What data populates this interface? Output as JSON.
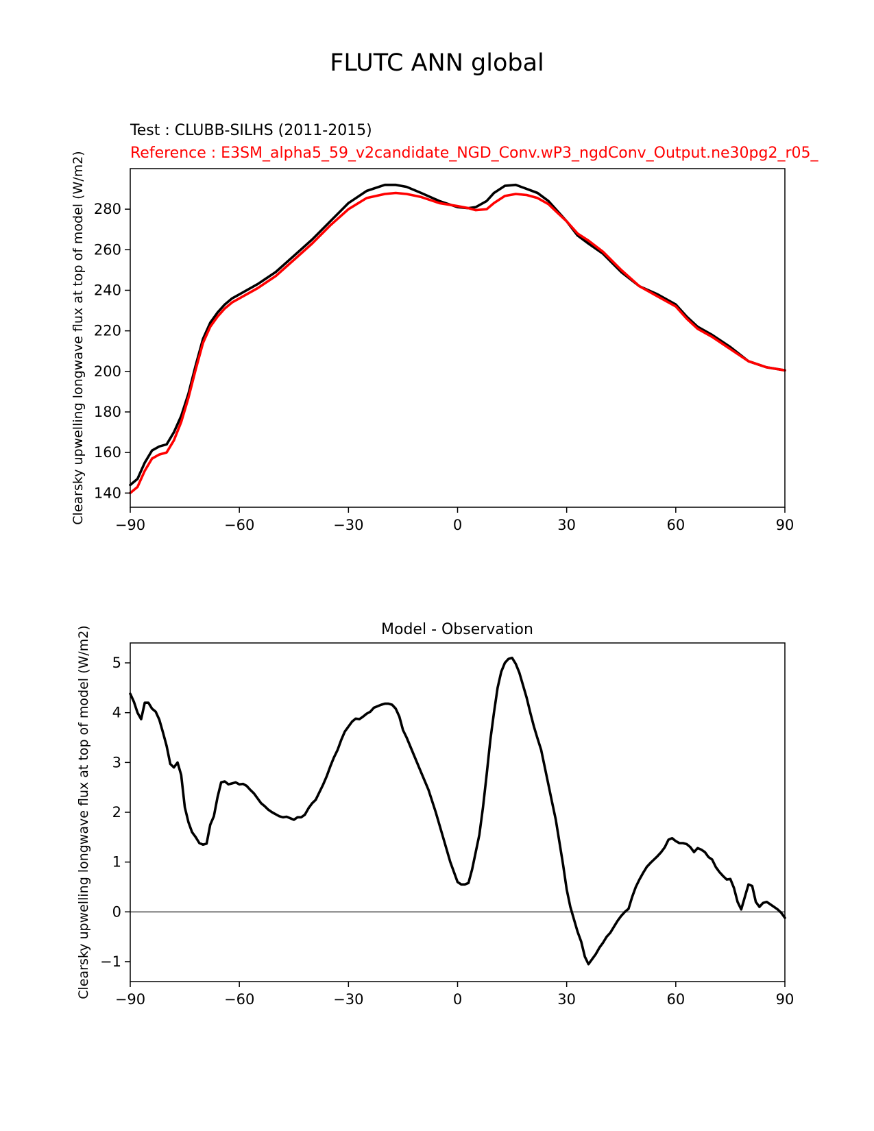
{
  "figure": {
    "suptitle": "FLUTC ANN global",
    "test_label": "Test : CLUBB-SILHS (2011-2015)",
    "reference_label": "Reference : E3SM_alpha5_59_v2candidate_NGD_Conv.wP3_ngdConv_Output.ne30pg2_r05_"
  },
  "colors": {
    "test": "#000000",
    "reference": "#ff0000",
    "zero_line": "#808080"
  },
  "chart_data": [
    {
      "type": "line",
      "title": "",
      "xlabel": "",
      "ylabel": "Clearsky upwelling longwave flux at top of model (W/m2)",
      "xlim": [
        -90,
        90
      ],
      "ylim": [
        133,
        300
      ],
      "xticks": [
        -90,
        -60,
        -30,
        0,
        30,
        60,
        90
      ],
      "xtick_labels": [
        "−90",
        "−60",
        "−30",
        "0",
        "30",
        "60",
        "90"
      ],
      "yticks": [
        140,
        160,
        180,
        200,
        220,
        240,
        260,
        280
      ],
      "ytick_labels": [
        "140",
        "160",
        "180",
        "200",
        "220",
        "240",
        "260",
        "280"
      ],
      "series": [
        {
          "name": "Test : CLUBB-SILHS (2011-2015)",
          "color": "#000000",
          "x": [
            -90,
            -88,
            -86,
            -84,
            -82,
            -80,
            -78,
            -76,
            -74,
            -72,
            -70,
            -68,
            -66,
            -64,
            -62,
            -60,
            -55,
            -50,
            -45,
            -40,
            -35,
            -30,
            -25,
            -20,
            -17,
            -14,
            -10,
            -5,
            0,
            3,
            5,
            8,
            10,
            13,
            16,
            19,
            22,
            25,
            27,
            30,
            33,
            36,
            40,
            45,
            50,
            55,
            60,
            63,
            66,
            70,
            75,
            80,
            85,
            90
          ],
          "values": [
            144,
            147,
            155,
            161,
            163,
            164,
            170,
            178,
            189,
            203,
            216,
            224,
            229,
            233,
            236,
            238,
            243,
            249,
            257,
            265,
            274,
            283,
            289,
            292,
            292,
            291,
            288,
            284,
            281,
            280.5,
            281,
            284,
            288,
            291.5,
            292,
            290,
            288,
            284,
            280,
            274,
            267,
            263,
            258,
            249,
            242,
            238,
            233,
            227,
            222,
            218,
            212,
            205,
            202,
            200.5
          ]
        },
        {
          "name": "Reference : E3SM_alpha5_59_v2candidate_NGD_Conv.wP3_ngdConv_Output.ne30pg2_r05_",
          "color": "#ff0000",
          "x": [
            -90,
            -88,
            -86,
            -84,
            -82,
            -80,
            -78,
            -76,
            -74,
            -72,
            -70,
            -68,
            -66,
            -64,
            -62,
            -60,
            -55,
            -50,
            -45,
            -40,
            -35,
            -30,
            -25,
            -20,
            -17,
            -14,
            -10,
            -5,
            0,
            3,
            5,
            8,
            10,
            13,
            16,
            19,
            22,
            25,
            27,
            30,
            33,
            36,
            40,
            45,
            50,
            55,
            60,
            63,
            66,
            70,
            75,
            80,
            85,
            90
          ],
          "values": [
            140,
            143,
            151,
            157,
            159,
            160,
            166,
            175,
            187,
            201,
            214,
            222,
            227,
            231,
            234,
            236,
            241,
            247,
            255,
            263,
            272,
            280,
            285.5,
            287.5,
            288,
            287.5,
            286,
            283,
            281.5,
            280.5,
            279.5,
            280,
            283,
            286.5,
            287.5,
            287,
            285.5,
            282.5,
            279,
            274,
            268,
            264.5,
            259,
            250,
            242,
            237,
            232,
            226,
            221,
            217,
            211,
            205,
            202,
            200.5
          ]
        }
      ]
    },
    {
      "type": "line",
      "title": "Model - Observation",
      "xlabel": "",
      "ylabel": "Clearsky upwelling longwave flux at top of model (W/m2)",
      "xlim": [
        -90,
        90
      ],
      "ylim": [
        -1.4,
        5.4
      ],
      "xticks": [
        -90,
        -60,
        -30,
        0,
        30,
        60,
        90
      ],
      "xtick_labels": [
        "−90",
        "−60",
        "−30",
        "0",
        "30",
        "60",
        "90"
      ],
      "yticks": [
        -1,
        0,
        1,
        2,
        3,
        4,
        5
      ],
      "ytick_labels": [
        "−1",
        "0",
        "1",
        "2",
        "3",
        "4",
        "5"
      ],
      "reference_line": {
        "y": 0,
        "color": "#808080"
      },
      "series": [
        {
          "name": "Model - Observation",
          "color": "#000000",
          "x": [
            -90,
            -89,
            -88,
            -87,
            -86,
            -85,
            -84,
            -83,
            -82,
            -81,
            -80,
            -79,
            -78,
            -77,
            -76,
            -75,
            -74,
            -73,
            -72,
            -71,
            -70,
            -69,
            -68,
            -67,
            -66,
            -65,
            -64,
            -63,
            -62,
            -61,
            -60,
            -59,
            -58,
            -57,
            -56,
            -55,
            -54,
            -53,
            -52,
            -51,
            -50,
            -49,
            -48,
            -47,
            -46,
            -45,
            -44,
            -43,
            -42,
            -41,
            -40,
            -39,
            -38,
            -37,
            -36,
            -35,
            -34,
            -33,
            -32,
            -31,
            -30,
            -29,
            -28,
            -27,
            -26,
            -25,
            -24,
            -23,
            -22,
            -21,
            -20,
            -19,
            -18,
            -17,
            -16,
            -15,
            -14,
            -12,
            -10,
            -8,
            -6,
            -4,
            -2,
            0,
            1,
            2,
            3,
            4,
            5,
            6,
            7,
            8,
            9,
            10,
            11,
            12,
            13,
            14,
            15,
            16,
            17,
            18,
            19,
            20,
            21,
            22,
            23,
            24,
            25,
            26,
            27,
            28,
            29,
            30,
            31,
            32,
            33,
            34,
            35,
            36,
            37,
            38,
            39,
            40,
            41,
            42,
            43,
            44,
            45,
            46,
            47,
            48,
            49,
            50,
            51,
            52,
            53,
            54,
            55,
            56,
            57,
            58,
            59,
            60,
            61,
            62,
            63,
            64,
            65,
            66,
            67,
            68,
            69,
            70,
            71,
            72,
            73,
            74,
            75,
            76,
            77,
            78,
            79,
            80,
            81,
            82,
            83,
            84,
            85,
            86,
            87,
            88,
            89,
            90
          ],
          "values": [
            4.38,
            4.22,
            4.0,
            3.87,
            4.2,
            4.2,
            4.08,
            4.02,
            3.86,
            3.6,
            3.33,
            2.97,
            2.9,
            3.0,
            2.75,
            2.1,
            1.8,
            1.6,
            1.5,
            1.38,
            1.35,
            1.37,
            1.75,
            1.92,
            2.3,
            2.6,
            2.62,
            2.56,
            2.58,
            2.6,
            2.56,
            2.57,
            2.53,
            2.45,
            2.38,
            2.28,
            2.18,
            2.12,
            2.05,
            2.0,
            1.96,
            1.92,
            1.9,
            1.91,
            1.88,
            1.85,
            1.9,
            1.9,
            1.95,
            2.08,
            2.18,
            2.25,
            2.4,
            2.55,
            2.72,
            2.92,
            3.1,
            3.25,
            3.45,
            3.62,
            3.72,
            3.82,
            3.88,
            3.87,
            3.92,
            3.98,
            4.02,
            4.1,
            4.13,
            4.16,
            4.18,
            4.18,
            4.16,
            4.08,
            3.92,
            3.65,
            3.5,
            3.15,
            2.8,
            2.45,
            2.0,
            1.5,
            1.0,
            0.6,
            0.55,
            0.55,
            0.58,
            0.85,
            1.2,
            1.55,
            2.1,
            2.75,
            3.45,
            4.0,
            4.5,
            4.82,
            5.0,
            5.08,
            5.1,
            4.98,
            4.8,
            4.55,
            4.3,
            4.0,
            3.72,
            3.48,
            3.25,
            2.9,
            2.55,
            2.2,
            1.85,
            1.4,
            0.95,
            0.45,
            0.1,
            -0.15,
            -0.4,
            -0.6,
            -0.9,
            -1.05,
            -0.95,
            -0.85,
            -0.72,
            -0.62,
            -0.5,
            -0.42,
            -0.3,
            -0.18,
            -0.08,
            0.0,
            0.06,
            0.3,
            0.5,
            0.65,
            0.78,
            0.9,
            0.98,
            1.05,
            1.12,
            1.2,
            1.3,
            1.45,
            1.48,
            1.42,
            1.38,
            1.38,
            1.36,
            1.3,
            1.2,
            1.28,
            1.25,
            1.2,
            1.1,
            1.05,
            0.9,
            0.8,
            0.72,
            0.65,
            0.66,
            0.48,
            0.2,
            0.05,
            0.3,
            0.55,
            0.52,
            0.2,
            0.1,
            0.18,
            0.2,
            0.15,
            0.1,
            0.05,
            -0.02,
            -0.12
          ]
        }
      ]
    }
  ]
}
